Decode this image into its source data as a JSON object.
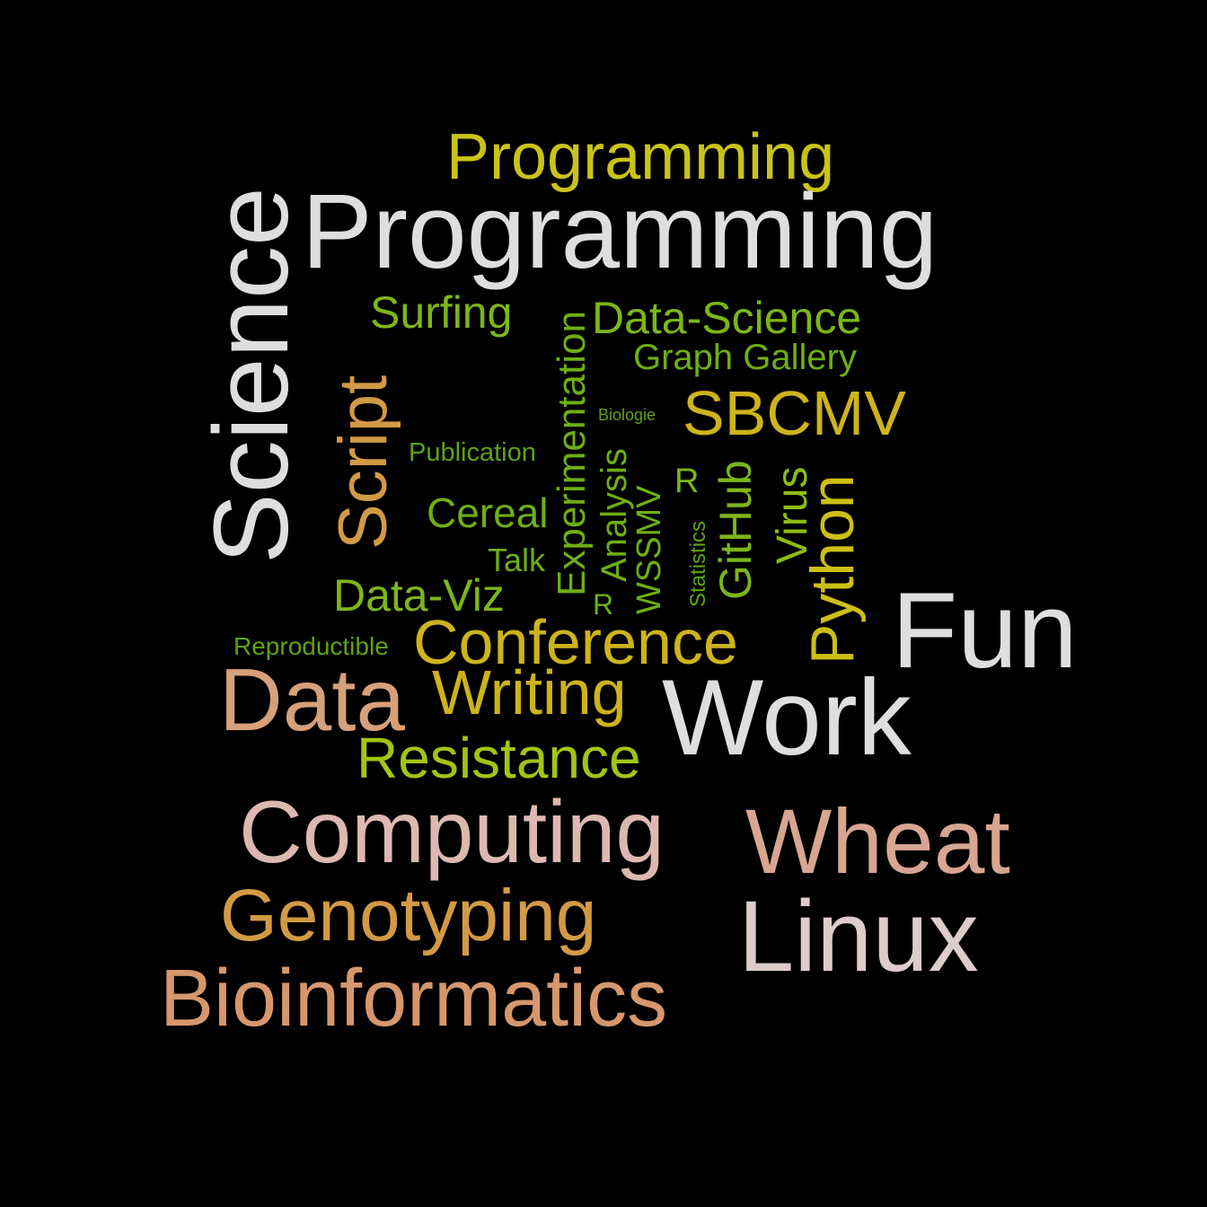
{
  "background": "#000000",
  "words": [
    {
      "text": "Programming",
      "color": "#c9c319"
    },
    {
      "text": "Programming",
      "color": "#dedede"
    },
    {
      "text": "Science",
      "color": "#dedede"
    },
    {
      "text": "Surfing",
      "color": "#7db519"
    },
    {
      "text": "Experimentation",
      "color": "#6fae14"
    },
    {
      "text": "Data-Science",
      "color": "#7db519"
    },
    {
      "text": "Graph Gallery",
      "color": "#6fae14"
    },
    {
      "text": "Script",
      "color": "#d29a45"
    },
    {
      "text": "SBCMV",
      "color": "#cdb31c"
    },
    {
      "text": "Biologie",
      "color": "#5fa214"
    },
    {
      "text": "Publication",
      "color": "#5fa214"
    },
    {
      "text": "Analysis",
      "color": "#6fae14"
    },
    {
      "text": "R",
      "color": "#7db519"
    },
    {
      "text": "GitHub",
      "color": "#7db519"
    },
    {
      "text": "Virus",
      "color": "#8dbc14"
    },
    {
      "text": "Python",
      "color": "#cdbf16"
    },
    {
      "text": "Cereal",
      "color": "#6fae14"
    },
    {
      "text": "WSSMV",
      "color": "#6fae14"
    },
    {
      "text": "Statistics",
      "color": "#5fa214"
    },
    {
      "text": "Talk",
      "color": "#6fae14"
    },
    {
      "text": "R",
      "color": "#6fae14"
    },
    {
      "text": "Data-Viz",
      "color": "#7db519"
    },
    {
      "text": "Fun",
      "color": "#dedede"
    },
    {
      "text": "Reproductible",
      "color": "#5fa214"
    },
    {
      "text": "Conference",
      "color": "#cdb31c"
    },
    {
      "text": "Data",
      "color": "#d6a07a"
    },
    {
      "text": "Writing",
      "color": "#cdb31c"
    },
    {
      "text": "Work",
      "color": "#dedede"
    },
    {
      "text": "Resistance",
      "color": "#a2c414"
    },
    {
      "text": "Computing",
      "color": "#dcb8b0"
    },
    {
      "text": "Wheat",
      "color": "#d8a592"
    },
    {
      "text": "Genotyping",
      "color": "#d29a45"
    },
    {
      "text": "Linux",
      "color": "#dccccc"
    },
    {
      "text": "Bioinformatics",
      "color": "#d6976c"
    }
  ]
}
